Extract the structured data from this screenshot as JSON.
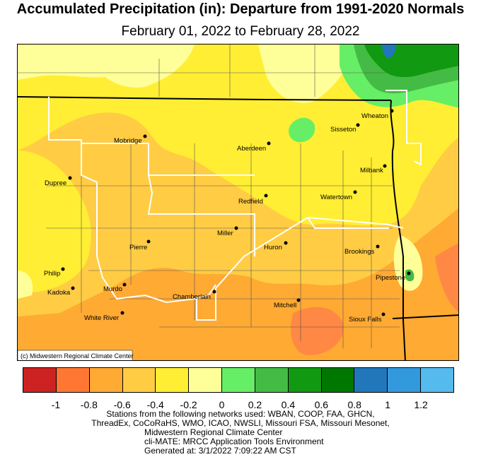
{
  "title": "Accumulated Precipitation (in): Departure from 1991-2020 Normals",
  "subtitle": "February 01, 2022 to February 28, 2022",
  "credit": "(c) Midwestern Regional Climate Center",
  "colors": {
    "c1": "#ffff99",
    "c2": "#ffee33",
    "c3": "#ffcc33",
    "c4": "#ffaa33",
    "c5": "#ff8033",
    "green_light": "#66ee66",
    "green_mid": "#44bb44",
    "green_dark": "#118811",
    "blue": "#2277bb"
  },
  "cities": [
    {
      "name": "Wheaton"
    },
    {
      "name": "Sisseton"
    },
    {
      "name": "Mobridge"
    },
    {
      "name": "Aberdeen"
    },
    {
      "name": "Milbank"
    },
    {
      "name": "Dupree"
    },
    {
      "name": "Redfield"
    },
    {
      "name": "Watertown"
    },
    {
      "name": "Miller"
    },
    {
      "name": "Pierre"
    },
    {
      "name": "Huron"
    },
    {
      "name": "Brookings"
    },
    {
      "name": "Philip"
    },
    {
      "name": "Pipestone"
    },
    {
      "name": "Murdo"
    },
    {
      "name": "Kadoka"
    },
    {
      "name": "Chamberlain"
    },
    {
      "name": "Mitchell"
    },
    {
      "name": "White River"
    },
    {
      "name": "Sioux Falls"
    }
  ],
  "legend": {
    "colors": [
      "#cc2222",
      "#ff7733",
      "#ffaa33",
      "#ffcc44",
      "#ffee33",
      "#ffff99",
      "#66ee66",
      "#44bb44",
      "#119911",
      "#007700",
      "#2277bb",
      "#3399dd",
      "#55bbee"
    ],
    "ticks": [
      "-1",
      "-0.8",
      "-0.6",
      "-0.4",
      "-0.2",
      "0",
      "0.2",
      "0.4",
      "0.6",
      "0.8",
      "1",
      "1.2"
    ]
  },
  "footer": {
    "line1": "Stations from the following networks used: WBAN, COOP, FAA, GHCN,",
    "line2": "ThreadEx, CoCoRaHS, WMO, ICAO, NWSLI, Missouri FSA, Missouri Mesonet,",
    "line3": "Midwestern Regional Climate Center",
    "line4": "cli-MATE: MRCC Application Tools Environment",
    "line5": "Generated at: 3/1/2022 7:09:22 AM CST"
  }
}
